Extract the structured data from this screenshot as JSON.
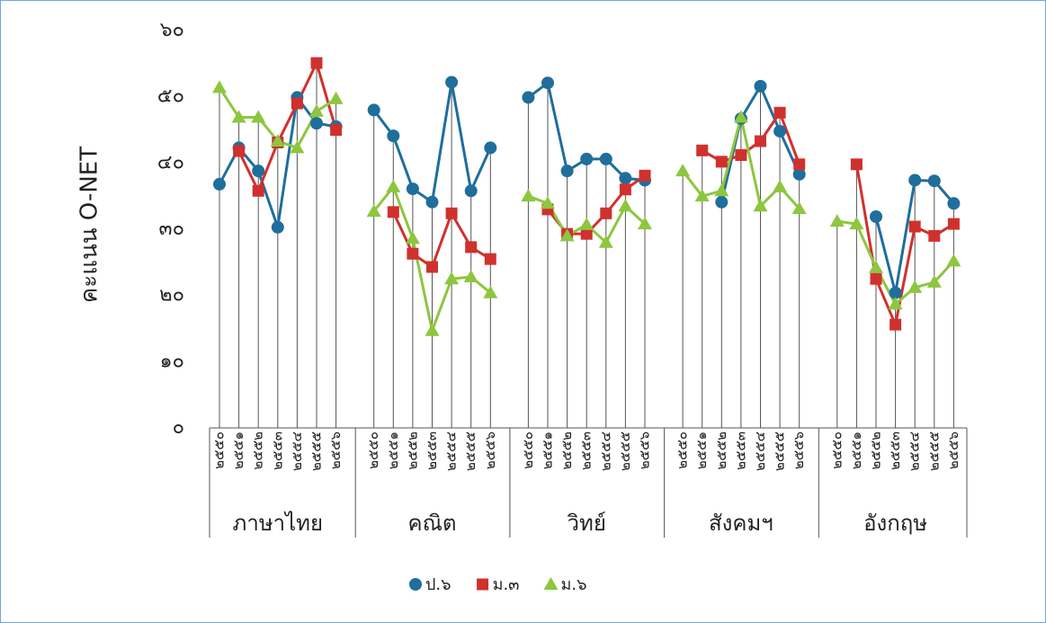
{
  "chart_data": {
    "type": "line",
    "y_label": "คะแนน O-NET",
    "groups": [
      "ภาษาไทย",
      "คณิต",
      "วิทย์",
      "สังคมฯ",
      "อังกฤษ"
    ],
    "categories": [
      "๒๕๕๐",
      "๒๕๕๑",
      "๒๕๕๒",
      "๒๕๕๓",
      "๒๕๕๔",
      "๒๕๕๕",
      "๒๕๕๖",
      "๒๕๕๐",
      "๒๕๕๑",
      "๒๕๕๒",
      "๒๕๕๓",
      "๒๕๕๔",
      "๒๕๕๕",
      "๒๕๕๖",
      "๒๕๕๐",
      "๒๕๕๑",
      "๒๕๕๒",
      "๒๕๕๓",
      "๒๕๕๔",
      "๒๕๕๕",
      "๒๕๕๖",
      "๒๕๕๐",
      "๒๕๕๑",
      "๒๕๕๒",
      "๒๕๕๓",
      "๒๕๕๔",
      "๒๕๕๕",
      "๒๕๕๖",
      "๒๕๕๐",
      "๒๕๕๑",
      "๒๕๕๒",
      "๒๕๕๓",
      "๒๕๕๔",
      "๒๕๕๕",
      "๒๕๕๖"
    ],
    "series": [
      {
        "name": "ป.๖",
        "color": "#1f6e9c",
        "marker": "circle",
        "values": [
          36.8,
          42.3,
          38.8,
          30.3,
          49.9,
          46,
          45.5,
          48,
          44.1,
          36.1,
          34.1,
          52.2,
          35.8,
          42.3,
          49.9,
          52.1,
          38.8,
          40.6,
          40.6,
          37.7,
          37.4,
          null,
          null,
          34.1,
          46.7,
          51.6,
          44.8,
          38.3,
          null,
          null,
          31.9,
          20.4,
          37.4,
          37.3,
          33.9
        ]
      },
      {
        "name": "ม.๓",
        "color": "#d0312d",
        "marker": "square",
        "values": [
          null,
          41.8,
          35.8,
          43.1,
          49,
          55.1,
          45,
          null,
          32.6,
          26.3,
          24.3,
          32.4,
          27.3,
          25.5,
          null,
          33,
          29.3,
          29.3,
          32.4,
          36,
          38.1,
          null,
          41.9,
          40.2,
          41.2,
          43.3,
          47.6,
          39.8,
          null,
          39.8,
          22.5,
          15.6,
          30.4,
          29,
          30.8
        ]
      },
      {
        "name": "ม.๖",
        "color": "#8dc63f",
        "marker": "triangle",
        "values": [
          51.4,
          46.9,
          46.9,
          43.3,
          42.3,
          47.8,
          49.7,
          32.7,
          36.4,
          28.6,
          14.7,
          22.5,
          22.8,
          20.4,
          35,
          33.9,
          29,
          30.7,
          28,
          33.5,
          30.8,
          38.8,
          35,
          35.8,
          46.9,
          33.5,
          36.4,
          33.1,
          31.2,
          30.8,
          24.2,
          18.7,
          21.2,
          22,
          25.2
        ]
      }
    ],
    "ylim": [
      0,
      60
    ],
    "yticks": [
      {
        "value": 0,
        "label": "๐"
      },
      {
        "value": 10,
        "label": "๑๐"
      },
      {
        "value": 20,
        "label": "๒๐"
      },
      {
        "value": 30,
        "label": "๓๐"
      },
      {
        "value": 40,
        "label": "๔๐"
      },
      {
        "value": 50,
        "label": "๕๐"
      },
      {
        "value": 60,
        "label": "๖๐"
      }
    ],
    "legend": "bottom"
  }
}
